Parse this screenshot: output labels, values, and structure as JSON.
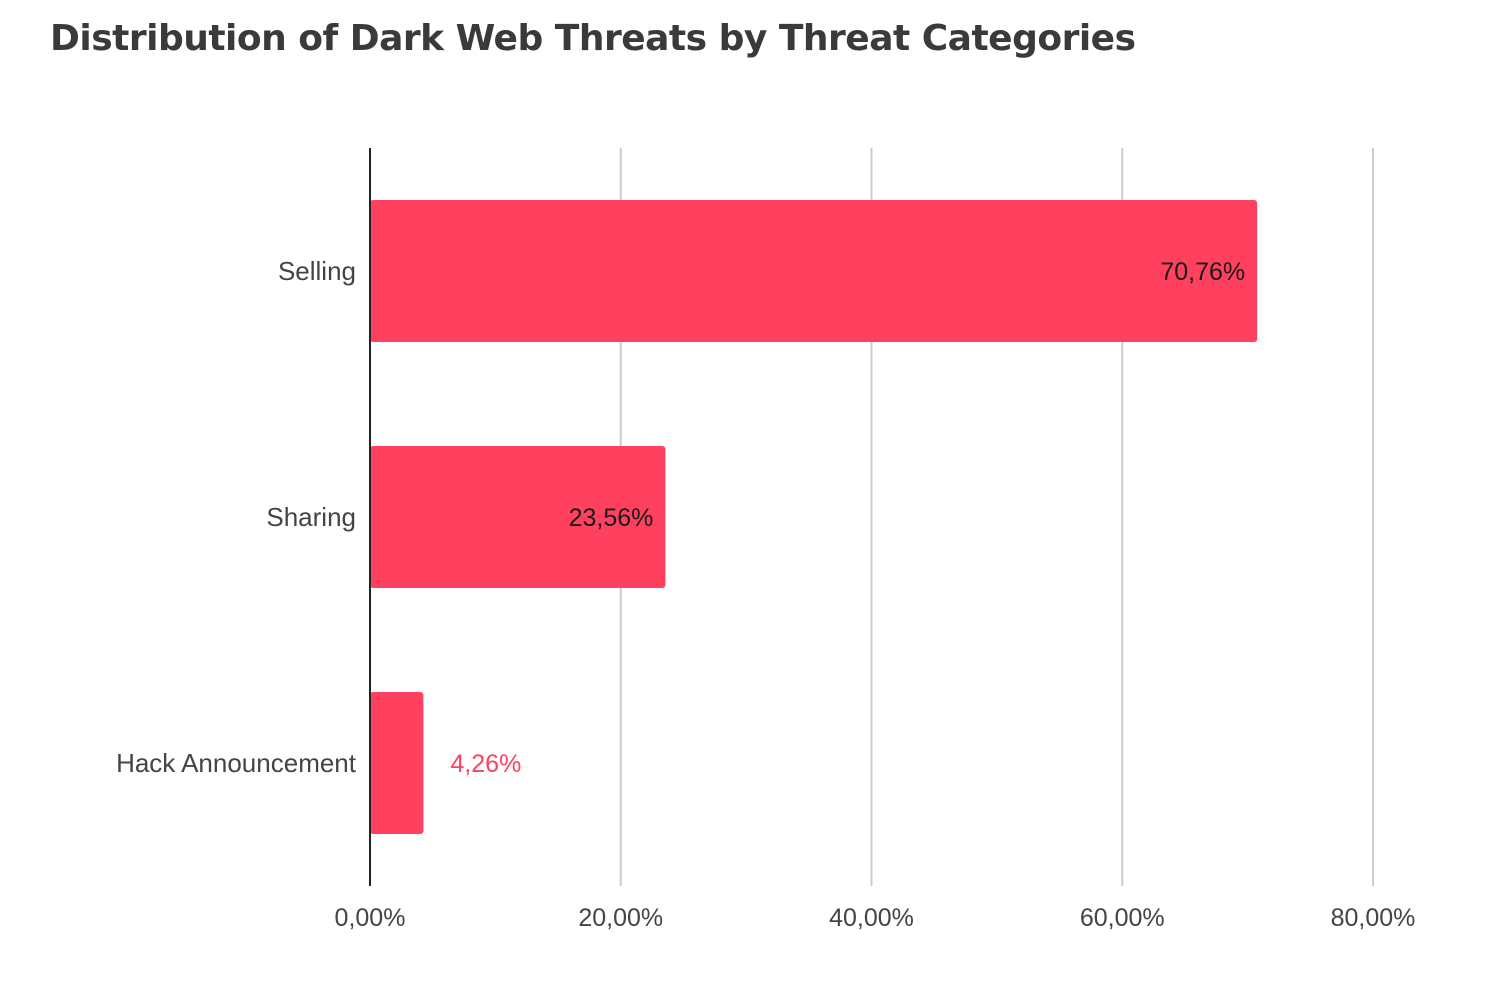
{
  "chart_data": {
    "type": "bar",
    "orientation": "horizontal",
    "title": "Distribution of Dark Web Threats by Threat Categories",
    "categories": [
      "Selling",
      "Sharing",
      "Hack Announcement"
    ],
    "values": [
      70.76,
      23.56,
      4.26
    ],
    "data_labels": [
      "70,76%",
      "23,56%",
      "4,26%"
    ],
    "xlim": [
      0,
      80
    ],
    "x_ticks": [
      0,
      20,
      40,
      60,
      80
    ],
    "x_tick_labels": [
      "0,00%",
      "20,00%",
      "40,00%",
      "60,00%",
      "80,00%"
    ],
    "xlabel": "",
    "ylabel": "",
    "grid": true,
    "legend": "none",
    "colors": {
      "bar": "#ff415f",
      "grid": "#cccccc",
      "axis": "#222222",
      "label_inside": "#1a1a1a",
      "label_outside": "#ff415f"
    }
  }
}
